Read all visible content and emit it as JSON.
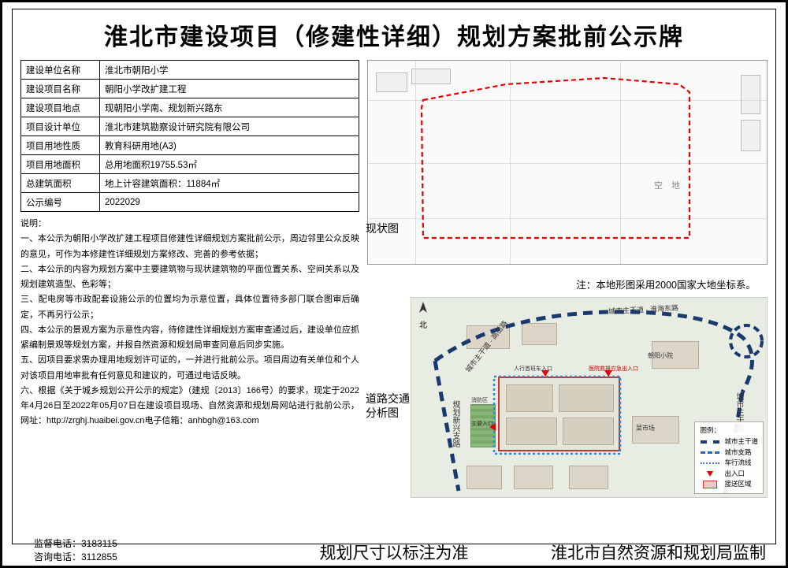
{
  "title": "淮北市建设项目（修建性详细）规划方案批前公示牌",
  "info_rows": [
    {
      "label": "建设单位名称",
      "value": "淮北市朝阳小学"
    },
    {
      "label": "建设项目名称",
      "value": "朝阳小学改扩建工程"
    },
    {
      "label": "建设项目地点",
      "value": "现朝阳小学南、规划新兴路东"
    },
    {
      "label": "项目设计单位",
      "value": "淮北市建筑勘察设计研究院有限公司"
    },
    {
      "label": "项目用地性质",
      "value": "教育科研用地(A3)"
    },
    {
      "label": "项目用地面积",
      "value": "总用地面积19755.53㎡"
    },
    {
      "label": "总建筑面积",
      "value": "地上计容建筑面积：11884㎡"
    },
    {
      "label": "公示编号",
      "value": "2022029"
    }
  ],
  "notes_heading": "说明：",
  "notes": [
    "一、本公示为朝阳小学改扩建工程项目修建性详细规划方案批前公示，周边邻里公众反映的意见，可作为本修建性详细规划方案修改、完善的参考依据；",
    "二、本公示的内容为规划方案中主要建筑物与现状建筑物的平面位置关系、空间关系以及规划建筑造型、色彩等；",
    "三、配电房等市政配套设施公示的位置均为示意位置，具体位置待多部门联合图审后确定，不再另行公示；",
    "四、本公示的景观方案为示意性内容，待修建性详细规划方案审查通过后，建设单位应抓紧编制景观等规划方案，并报自然资源和规划局审查同意后同步实施。",
    "五、因项目要求需办理用地规划许可证的，一并进行批前公示。项目周边有关单位和个人对该项目用地审批有任何意见和建议的，可通过电话反映。",
    "六、根据《关于城乡规划公开公示的规定》（建规〔2013〕166号）的要求，现定于2022年4月26日至2022年05月07日在建设项目现场、自然资源和规划局网站进行批前公示，网址：http://zrghj.huaibei.gov.cn电子信箱：anhbgh@163.com"
  ],
  "phones": {
    "supervise": "监督电话：3183115",
    "consult": "咨询电话：3112855"
  },
  "footer_mid": "规划尺寸以标注为准",
  "footer_right": "淮北市自然资源和规划局监制",
  "map1": {
    "label": "现状图",
    "lot_text": "空　地",
    "coord_note": "注：本地形图采用2000国家大地坐标系。"
  },
  "map2": {
    "label_line1": "道路交通",
    "label_line2": "分析图",
    "north": "北",
    "roads": {
      "huaihai": "城市主干道 · 淮海东路",
      "gaoyue": "城市主干道 · 高岳路",
      "nanhu": "城市主干道　南湖路",
      "xinxing": "规划新兴支路"
    },
    "facilities": {
      "school": "朝阳小院",
      "market": "菜市场",
      "hospital_entry": "医院救援应急出入口",
      "people_entry": "人行首班车入口",
      "main_entry": "主要入口",
      "service": "消防区"
    },
    "legend": {
      "title": "图例：",
      "items": [
        {
          "key": "main",
          "text": "城市主干道"
        },
        {
          "key": "sec",
          "text": "城市支路"
        },
        {
          "key": "trav",
          "text": "车行流线"
        },
        {
          "key": "ent",
          "text": "出入口"
        },
        {
          "key": "zone",
          "text": "接送区域"
        }
      ]
    }
  }
}
